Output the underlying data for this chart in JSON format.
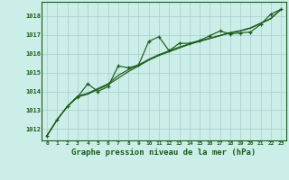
{
  "title": "Graphe pression niveau de la mer (hPa)",
  "bg_color": "#cceee8",
  "grid_color": "#aacccc",
  "line_color": "#1a5c1a",
  "x_labels": [
    "0",
    "1",
    "2",
    "3",
    "4",
    "5",
    "6",
    "7",
    "8",
    "9",
    "10",
    "11",
    "12",
    "13",
    "14",
    "15",
    "16",
    "17",
    "18",
    "19",
    "20",
    "21",
    "22",
    "23"
  ],
  "ylim": [
    1011.4,
    1018.75
  ],
  "yticks": [
    1012,
    1013,
    1014,
    1015,
    1016,
    1017,
    1018
  ],
  "series_marker": [
    1011.65,
    1012.5,
    1013.2,
    1013.7,
    1014.4,
    1014.0,
    1014.25,
    1015.35,
    1015.25,
    1015.4,
    1016.65,
    1016.9,
    1016.15,
    1016.55,
    1016.55,
    1016.7,
    1016.95,
    1017.2,
    1017.05,
    1017.1,
    1017.15,
    1017.55,
    1018.1,
    1018.35
  ],
  "series_smooth1": [
    1011.65,
    1012.5,
    1013.2,
    1013.7,
    1013.85,
    1014.1,
    1014.35,
    1014.7,
    1015.05,
    1015.35,
    1015.65,
    1015.9,
    1016.1,
    1016.3,
    1016.5,
    1016.65,
    1016.8,
    1016.95,
    1017.1,
    1017.2,
    1017.35,
    1017.6,
    1017.85,
    1018.35
  ],
  "series_smooth2": [
    1011.65,
    1012.5,
    1013.2,
    1013.75,
    1013.9,
    1014.15,
    1014.4,
    1014.85,
    1015.15,
    1015.4,
    1015.7,
    1015.95,
    1016.15,
    1016.35,
    1016.52,
    1016.67,
    1016.82,
    1016.97,
    1017.12,
    1017.22,
    1017.37,
    1017.62,
    1017.87,
    1018.35
  ]
}
